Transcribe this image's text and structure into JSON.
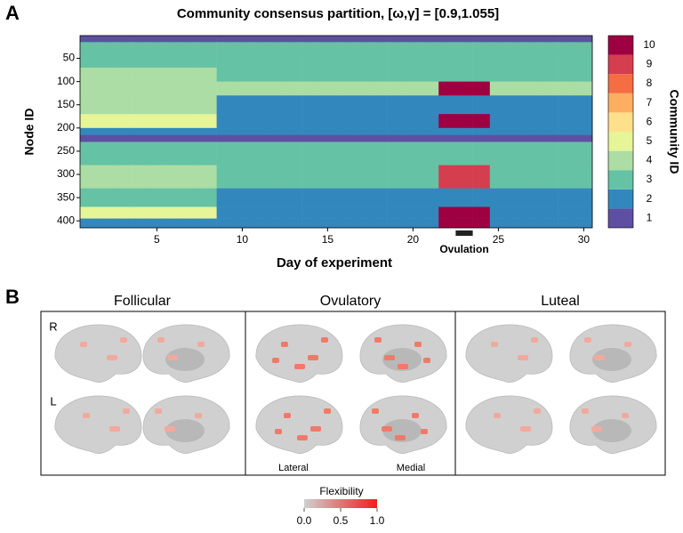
{
  "panel_labels": [
    "A",
    "B"
  ],
  "chart_data": {
    "type": "heatmap",
    "title": "Community consensus partition, [ω,γ] = [0.9,1.055]",
    "xlabel": "Day of experiment",
    "ylabel": "Node ID",
    "annotation": "Ovulation",
    "annotation_x": [
      22.5,
      23.5
    ],
    "x": [
      1,
      2,
      3,
      4,
      5,
      6,
      7,
      8,
      9,
      10,
      11,
      12,
      13,
      14,
      15,
      16,
      17,
      18,
      19,
      20,
      21,
      22,
      23,
      24,
      25,
      26,
      27,
      28,
      29,
      30
    ],
    "y_edges": [
      1,
      15,
      30,
      70,
      100,
      130,
      170,
      200,
      215,
      230,
      280,
      330,
      370,
      395,
      415
    ],
    "z": [
      [
        1,
        1,
        1,
        1,
        1,
        1,
        1,
        1,
        1,
        1,
        1,
        1,
        1,
        1,
        1,
        1,
        1,
        1,
        1,
        1,
        1,
        1,
        1,
        1,
        1,
        1,
        1,
        1,
        1,
        1
      ],
      [
        3,
        3,
        3,
        3,
        3,
        3,
        3,
        3,
        3,
        3,
        3,
        3,
        3,
        3,
        3,
        3,
        3,
        3,
        3,
        3,
        3,
        3,
        3,
        3,
        3,
        3,
        3,
        3,
        3,
        3
      ],
      [
        3,
        3,
        3,
        3,
        3,
        3,
        3,
        3,
        3,
        3,
        3,
        3,
        3,
        3,
        3,
        3,
        3,
        3,
        3,
        3,
        3,
        3,
        3,
        3,
        3,
        3,
        3,
        3,
        3,
        3
      ],
      [
        4,
        4,
        4,
        4,
        4,
        4,
        4,
        4,
        3,
        3,
        3,
        3,
        3,
        3,
        3,
        3,
        3,
        3,
        3,
        3,
        3,
        3,
        3,
        3,
        3,
        3,
        3,
        3,
        3,
        3
      ],
      [
        4,
        4,
        4,
        4,
        4,
        4,
        4,
        4,
        4,
        4,
        4,
        4,
        4,
        4,
        4,
        4,
        4,
        4,
        4,
        4,
        4,
        10,
        10,
        10,
        4,
        4,
        4,
        4,
        4,
        4
      ],
      [
        4,
        4,
        4,
        4,
        4,
        4,
        4,
        4,
        2,
        2,
        2,
        2,
        2,
        2,
        2,
        2,
        2,
        2,
        2,
        2,
        2,
        2,
        2,
        2,
        2,
        2,
        2,
        2,
        2,
        2
      ],
      [
        5,
        5,
        5,
        5,
        5,
        5,
        5,
        5,
        2,
        2,
        2,
        2,
        2,
        2,
        2,
        2,
        2,
        2,
        2,
        2,
        2,
        10,
        10,
        10,
        2,
        2,
        2,
        2,
        2,
        2
      ],
      [
        2,
        2,
        2,
        2,
        2,
        2,
        2,
        2,
        2,
        2,
        2,
        2,
        2,
        2,
        2,
        2,
        2,
        2,
        2,
        2,
        2,
        2,
        2,
        2,
        2,
        2,
        2,
        2,
        2,
        2
      ],
      [
        1,
        1,
        1,
        1,
        1,
        1,
        1,
        1,
        1,
        1,
        1,
        1,
        1,
        1,
        1,
        1,
        1,
        1,
        1,
        1,
        1,
        1,
        1,
        1,
        1,
        1,
        1,
        1,
        1,
        1
      ],
      [
        3,
        3,
        3,
        3,
        3,
        3,
        3,
        3,
        3,
        3,
        3,
        3,
        3,
        3,
        3,
        3,
        3,
        3,
        3,
        3,
        3,
        3,
        3,
        3,
        3,
        3,
        3,
        3,
        3,
        3
      ],
      [
        4,
        4,
        4,
        4,
        4,
        4,
        4,
        4,
        3,
        3,
        3,
        3,
        3,
        3,
        3,
        3,
        3,
        3,
        3,
        3,
        3,
        9,
        9,
        9,
        3,
        3,
        3,
        3,
        3,
        3
      ],
      [
        3,
        3,
        3,
        3,
        3,
        3,
        3,
        3,
        2,
        2,
        2,
        2,
        2,
        2,
        2,
        2,
        2,
        2,
        2,
        2,
        2,
        2,
        2,
        2,
        2,
        2,
        2,
        2,
        2,
        2
      ],
      [
        5,
        5,
        5,
        5,
        5,
        5,
        5,
        5,
        2,
        2,
        2,
        2,
        2,
        2,
        2,
        2,
        2,
        2,
        2,
        2,
        2,
        10,
        10,
        10,
        2,
        2,
        2,
        2,
        2,
        2
      ],
      [
        2,
        2,
        2,
        2,
        2,
        2,
        2,
        2,
        2,
        2,
        2,
        2,
        2,
        2,
        2,
        2,
        2,
        2,
        2,
        2,
        2,
        10,
        10,
        10,
        2,
        2,
        2,
        2,
        2,
        2
      ]
    ],
    "xlim": [
      0.5,
      30.5
    ],
    "xticks": [
      5,
      10,
      15,
      20,
      25,
      30
    ],
    "ylim": [
      1,
      415
    ],
    "yticks": [
      50,
      100,
      150,
      200,
      250,
      300,
      350,
      400
    ],
    "colorbar": {
      "label": "Community ID",
      "ticks": [
        1,
        2,
        3,
        4,
        5,
        6,
        7,
        8,
        9,
        10
      ],
      "colors": [
        "#5e4fa2",
        "#3288bd",
        "#66c2a5",
        "#abdda4",
        "#e6f598",
        "#fee08b",
        "#fdae61",
        "#f46d43",
        "#d53e4f",
        "#9e0142"
      ]
    }
  },
  "brain_panel": {
    "phases": [
      "Follicular",
      "Ovulatory",
      "Luteal"
    ],
    "hemispheres": [
      "R",
      "L"
    ],
    "views": [
      "Lateral",
      "Medial"
    ],
    "colorbar": {
      "label": "Flexibility",
      "lim": [
        0,
        1
      ],
      "ticks": [
        {
          "value": 0,
          "label": "0.0"
        },
        {
          "value": 0.5,
          "label": "0.5"
        },
        {
          "value": 1,
          "label": "1.0"
        }
      ],
      "colors": [
        "#d0d0d0",
        "#f01e1e"
      ]
    }
  }
}
